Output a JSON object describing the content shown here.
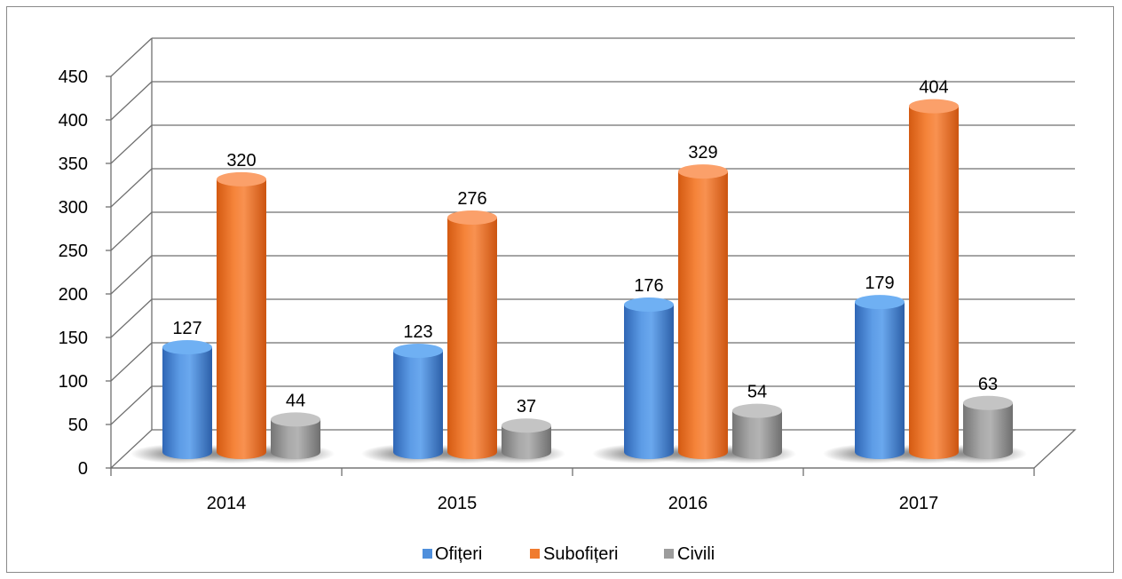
{
  "chart_data": {
    "type": "bar",
    "style": "3d-cylinder",
    "title": "",
    "xlabel": "",
    "ylabel": "",
    "categories": [
      "2014",
      "2015",
      "2016",
      "2017"
    ],
    "series": [
      {
        "name": "Ofițeri",
        "color": "#4f8fdc",
        "values": [
          127,
          123,
          176,
          179
        ]
      },
      {
        "name": "Subofițeri",
        "color": "#f07b2e",
        "values": [
          320,
          276,
          329,
          404
        ]
      },
      {
        "name": "Civili",
        "color": "#9c9c9c",
        "values": [
          44,
          37,
          54,
          63
        ]
      }
    ],
    "ylim": [
      0,
      450
    ],
    "yticks": [
      "0",
      "50",
      "100",
      "150",
      "200",
      "250",
      "300",
      "350",
      "400",
      "450"
    ],
    "grid": true,
    "legend_position": "bottom",
    "data_labels": true
  }
}
